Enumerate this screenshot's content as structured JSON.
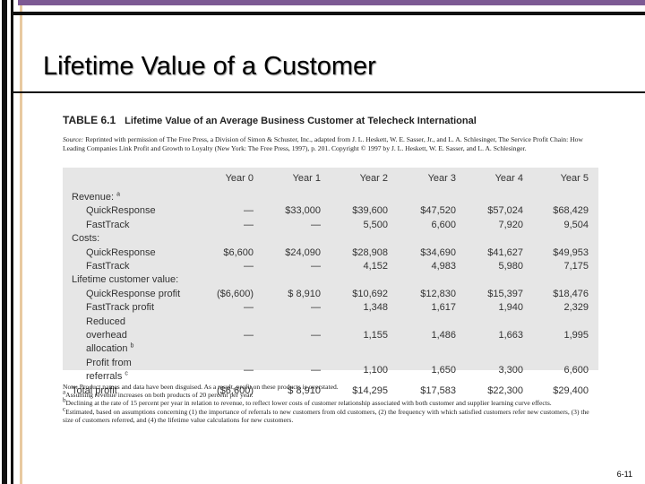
{
  "title": "Lifetime Value of a Customer",
  "table": {
    "number": "TABLE 6.1",
    "caption": "Lifetime Value of an Average Business Customer at Telecheck International",
    "source": {
      "label": "Source:",
      "text": "Reprinted with permission of The Free Press, a Division of Simon & Schuster, Inc., adapted from J. L. Heskett, W. E. Sasser, Jr., and L. A. Schlesinger, The Service Profit Chain: How Leading Companies Link Profit and Growth to Loyalty (New York: The Free Press, 1997), p. 201. Copyright © 1997 by J. L. Heskett, W. E. Sasser, and L. A. Schlesinger."
    },
    "header": [
      "Year 0",
      "Year 1",
      "Year 2",
      "Year 3",
      "Year 4",
      "Year 5"
    ],
    "sections": [
      {
        "label": "Revenue:",
        "sup": "a",
        "rows": [
          {
            "label": "QuickResponse",
            "values": [
              "—",
              "$33,000",
              "$39,600",
              "$47,520",
              "$57,024",
              "$68,429"
            ]
          },
          {
            "label": "FastTrack",
            "values": [
              "—",
              "—",
              "5,500",
              "6,600",
              "7,920",
              "9,504"
            ]
          }
        ]
      },
      {
        "label": "Costs:",
        "rows": [
          {
            "label": "QuickResponse",
            "values": [
              "$6,600",
              "$24,090",
              "$28,908",
              "$34,690",
              "$41,627",
              "$49,953"
            ]
          },
          {
            "label": "FastTrack",
            "values": [
              "—",
              "—",
              "4,152",
              "4,983",
              "5,980",
              "7,175"
            ]
          }
        ]
      },
      {
        "label": "Lifetime customer value:",
        "rows": [
          {
            "label": "QuickResponse profit",
            "values": [
              "($6,600)",
              "$ 8,910",
              "$10,692",
              "$12,830",
              "$15,397",
              "$18,476"
            ]
          },
          {
            "label": "FastTrack profit",
            "values": [
              "—",
              "—",
              "1,348",
              "1,617",
              "1,940",
              "2,329"
            ]
          },
          {
            "label": "Reduced overhead allocation",
            "sup": "b",
            "values": [
              "—",
              "—",
              "1,155",
              "1,486",
              "1,663",
              "1,995"
            ]
          },
          {
            "label": "Profit from referrals",
            "sup": "c",
            "values": [
              "—",
              "—",
              "1,100",
              "1,650",
              "3,300",
              "6,600"
            ]
          }
        ]
      },
      {
        "label": "Total profit",
        "values": [
          "($6,600)",
          "$ 8,910",
          "$14,295",
          "$17,583",
          "$22,300",
          "$29,400"
        ]
      }
    ],
    "notes": [
      {
        "text": "Note: Product names and data have been disguised. As a result, profit on these products is overstated."
      },
      {
        "mark": "a",
        "text": "Assuming revenue increases on both products of 20 percent per year."
      },
      {
        "mark": "b",
        "text": "Declining at the rate of 15 percent per year in relation to revenue, to reflect lower costs of customer relationship associated with both customer and supplier learning curve effects."
      },
      {
        "mark": "c",
        "text": "Estimated, based on assumptions concerning (1) the importance of referrals to new customers from old customers, (2) the frequency with which satisfied customers refer new customers, (3) the size of customers referred, and (4) the lifetime value calculations for new customers."
      }
    ]
  },
  "page_number": "6-11"
}
